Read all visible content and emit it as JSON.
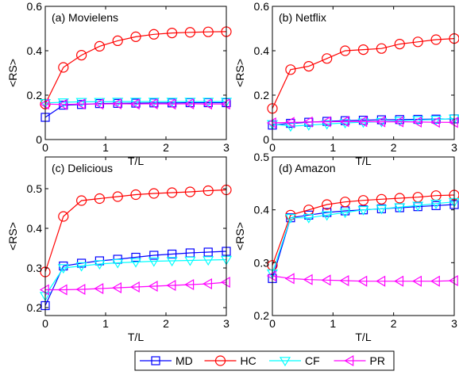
{
  "chart_data": [
    {
      "type": "line",
      "panel_label": "(a) Movielens",
      "xlabel": "T/L",
      "ylabel": "<RS>",
      "xlim": [
        0,
        3
      ],
      "ylim": [
        0,
        0.6
      ],
      "xticks": [
        "0",
        "1",
        "2",
        "3"
      ],
      "yticks": [
        "0",
        "0.2",
        "0.4",
        "0.6"
      ],
      "x": [
        0,
        0.3,
        0.6,
        0.9,
        1.2,
        1.5,
        1.8,
        2.1,
        2.4,
        2.7,
        3.0
      ],
      "series": [
        {
          "name": "MD",
          "values": [
            0.1,
            0.155,
            0.158,
            0.162,
            0.163,
            0.164,
            0.165,
            0.165,
            0.166,
            0.166,
            0.166
          ]
        },
        {
          "name": "HC",
          "values": [
            0.16,
            0.325,
            0.38,
            0.42,
            0.445,
            0.463,
            0.474,
            0.48,
            0.483,
            0.485,
            0.486
          ]
        },
        {
          "name": "CF",
          "values": [
            0.165,
            0.168,
            0.17,
            0.17,
            0.171,
            0.171,
            0.171,
            0.171,
            0.171,
            0.171,
            0.171
          ]
        },
        {
          "name": "PR",
          "values": [
            0.16,
            0.158,
            0.16,
            0.16,
            0.161,
            0.16,
            0.161,
            0.16,
            0.161,
            0.16,
            0.16
          ]
        }
      ]
    },
    {
      "type": "line",
      "panel_label": "(b) Netflix",
      "xlabel": "T/L",
      "ylabel": "<RS>",
      "xlim": [
        0,
        3
      ],
      "ylim": [
        0,
        0.6
      ],
      "xticks": [
        "0",
        "1",
        "2",
        "3"
      ],
      "yticks": [
        "0",
        "0.2",
        "0.4",
        "0.6"
      ],
      "x": [
        0,
        0.3,
        0.6,
        0.9,
        1.2,
        1.5,
        1.8,
        2.1,
        2.4,
        2.7,
        3.0
      ],
      "series": [
        {
          "name": "MD",
          "values": [
            0.065,
            0.073,
            0.078,
            0.082,
            0.085,
            0.087,
            0.089,
            0.09,
            0.091,
            0.092,
            0.093
          ]
        },
        {
          "name": "HC",
          "values": [
            0.14,
            0.315,
            0.33,
            0.365,
            0.4,
            0.405,
            0.41,
            0.43,
            0.44,
            0.45,
            0.455
          ]
        },
        {
          "name": "CF",
          "values": [
            0.07,
            0.06,
            0.065,
            0.07,
            0.075,
            0.078,
            0.08,
            0.085,
            0.088,
            0.09,
            0.095
          ]
        },
        {
          "name": "PR",
          "values": [
            0.075,
            0.077,
            0.079,
            0.08,
            0.081,
            0.081,
            0.08,
            0.08,
            0.079,
            0.078,
            0.077
          ]
        }
      ]
    },
    {
      "type": "line",
      "panel_label": "(c) Delicious",
      "xlabel": "T/L",
      "ylabel": "<RS>",
      "xlim": [
        0,
        3
      ],
      "ylim": [
        0.18,
        0.58
      ],
      "xticks": [
        "0",
        "1",
        "2",
        "3"
      ],
      "yticks": [
        "0.2",
        "0.3",
        "0.4",
        "0.5"
      ],
      "x": [
        0,
        0.3,
        0.6,
        0.9,
        1.2,
        1.5,
        1.8,
        2.1,
        2.4,
        2.7,
        3.0
      ],
      "series": [
        {
          "name": "MD",
          "values": [
            0.205,
            0.305,
            0.312,
            0.318,
            0.322,
            0.327,
            0.332,
            0.335,
            0.338,
            0.34,
            0.342
          ]
        },
        {
          "name": "HC",
          "values": [
            0.29,
            0.43,
            0.47,
            0.475,
            0.48,
            0.485,
            0.488,
            0.49,
            0.492,
            0.495,
            0.497
          ]
        },
        {
          "name": "CF",
          "values": [
            0.23,
            0.3,
            0.305,
            0.31,
            0.313,
            0.315,
            0.317,
            0.318,
            0.319,
            0.32,
            0.321
          ]
        },
        {
          "name": "PR",
          "values": [
            0.245,
            0.245,
            0.246,
            0.248,
            0.25,
            0.252,
            0.254,
            0.256,
            0.258,
            0.26,
            0.264
          ]
        }
      ]
    },
    {
      "type": "line",
      "panel_label": "(d) Amazon",
      "xlabel": "T/L",
      "ylabel": "<RS>",
      "xlim": [
        0,
        3
      ],
      "ylim": [
        0.2,
        0.5
      ],
      "xticks": [
        "0",
        "1",
        "2",
        "3"
      ],
      "yticks": [
        "0.2",
        "0.3",
        "0.4",
        "0.5"
      ],
      "x": [
        0,
        0.3,
        0.6,
        0.9,
        1.2,
        1.5,
        1.8,
        2.1,
        2.4,
        2.7,
        3.0
      ],
      "series": [
        {
          "name": "MD",
          "values": [
            0.27,
            0.385,
            0.39,
            0.395,
            0.398,
            0.4,
            0.402,
            0.404,
            0.406,
            0.408,
            0.41
          ]
        },
        {
          "name": "HC",
          "values": [
            0.295,
            0.39,
            0.4,
            0.41,
            0.415,
            0.418,
            0.42,
            0.422,
            0.424,
            0.427,
            0.428
          ]
        },
        {
          "name": "CF",
          "values": [
            0.28,
            0.385,
            0.385,
            0.39,
            0.395,
            0.4,
            0.402,
            0.405,
            0.408,
            0.412,
            0.415
          ]
        },
        {
          "name": "PR",
          "values": [
            0.275,
            0.27,
            0.268,
            0.267,
            0.266,
            0.265,
            0.265,
            0.265,
            0.265,
            0.265,
            0.266
          ]
        }
      ]
    }
  ],
  "legend": {
    "placement": "bottom-center",
    "entries": [
      {
        "name": "MD",
        "color": "#0000ff",
        "marker": "square"
      },
      {
        "name": "HC",
        "color": "#ff0000",
        "marker": "circle"
      },
      {
        "name": "CF",
        "color": "#00ffff",
        "marker": "triangle-down"
      },
      {
        "name": "PR",
        "color": "#ff00ff",
        "marker": "triangle-left"
      }
    ]
  }
}
